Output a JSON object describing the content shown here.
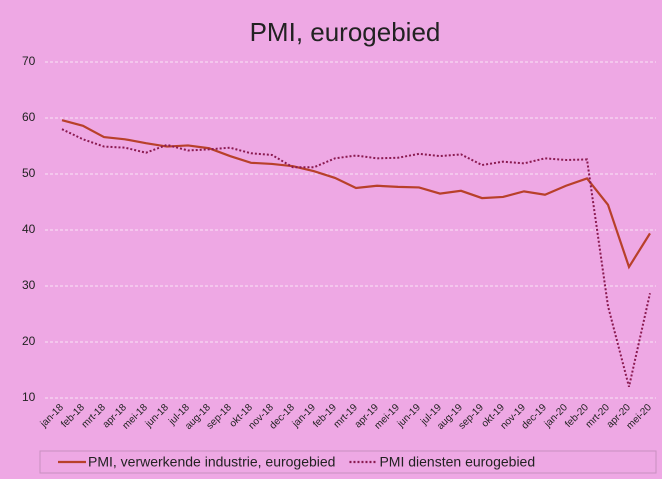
{
  "chart_data": {
    "type": "line",
    "title": "PMI, eurogebied",
    "categories": [
      "jan-18",
      "feb-18",
      "mrt-18",
      "apr-18",
      "mei-18",
      "jun-18",
      "jul-18",
      "aug-18",
      "sep-18",
      "okt-18",
      "nov-18",
      "dec-18",
      "jan-19",
      "feb-19",
      "mrt-19",
      "apr-19",
      "mei-19",
      "jun-19",
      "jul-19",
      "aug-19",
      "sep-19",
      "okt-19",
      "nov-19",
      "dec-19",
      "jan-20",
      "feb-20",
      "mrt-20",
      "apr-20",
      "mei-20"
    ],
    "series": [
      {
        "name": "PMI, verwerkende industrie, eurogebied",
        "color": "#b8402a",
        "dash": "solid",
        "values": [
          59.6,
          58.6,
          56.6,
          56.2,
          55.5,
          54.9,
          55.1,
          54.6,
          53.2,
          52.0,
          51.8,
          51.4,
          50.5,
          49.3,
          47.5,
          47.9,
          47.7,
          47.6,
          46.5,
          47.0,
          45.7,
          45.9,
          46.9,
          46.3,
          47.9,
          49.2,
          44.5,
          33.4,
          39.4
        ]
      },
      {
        "name": "PMI diensten eurogebied",
        "color": "#8a1a50",
        "dash": "dotted",
        "values": [
          58.0,
          56.2,
          54.9,
          54.7,
          53.8,
          55.2,
          54.2,
          54.4,
          54.7,
          53.7,
          53.4,
          51.2,
          51.2,
          52.8,
          53.3,
          52.8,
          52.9,
          53.6,
          53.2,
          53.5,
          51.6,
          52.2,
          51.9,
          52.8,
          52.5,
          52.6,
          26.4,
          12.0,
          28.7
        ]
      }
    ],
    "ylim": [
      10,
      70
    ],
    "yticks": [
      10,
      20,
      30,
      40,
      50,
      60,
      70
    ],
    "grid": true,
    "legend": "bottom"
  }
}
